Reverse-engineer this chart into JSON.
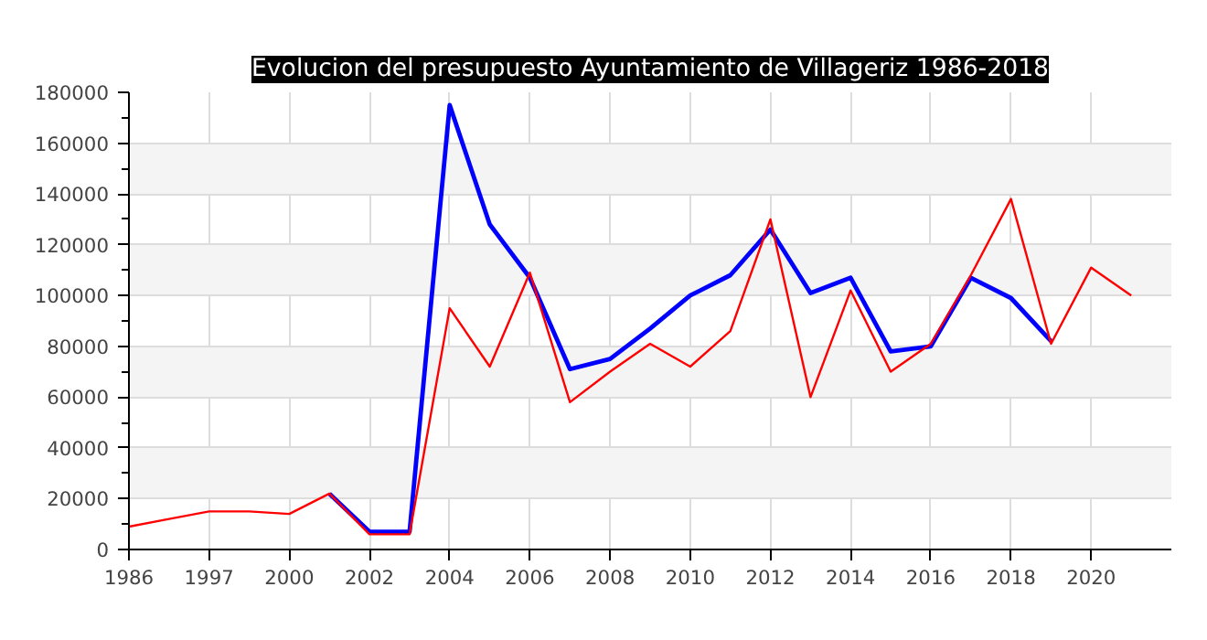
{
  "chart_data": {
    "type": "line",
    "title": "Evolucion del presupuesto Ayuntamiento de Villageriz 1986-2018",
    "categories": [
      "1986",
      null,
      "1997",
      null,
      "2000",
      null,
      "2002",
      null,
      "2004",
      null,
      "2006",
      null,
      "2008",
      null,
      "2010",
      null,
      "2012",
      null,
      "2014",
      null,
      "2016",
      null,
      "2018",
      null,
      "2020",
      null
    ],
    "series": [
      {
        "color": "#0000ff",
        "values": [
          null,
          null,
          null,
          null,
          null,
          22000,
          7000,
          7000,
          175000,
          128000,
          107000,
          71000,
          75000,
          87000,
          100000,
          108000,
          126000,
          101000,
          107000,
          78000,
          80000,
          107000,
          99000,
          82000,
          null,
          null
        ]
      },
      {
        "color": "#ff0000",
        "values": [
          9000,
          12000,
          15000,
          15000,
          14000,
          22000,
          6000,
          6000,
          95000,
          72000,
          109000,
          58000,
          70000,
          81000,
          72000,
          86000,
          130000,
          60000,
          102000,
          70000,
          81000,
          108000,
          138000,
          81000,
          111000,
          100000
        ]
      }
    ],
    "ylim": [
      0,
      180000
    ],
    "yticks": [
      0,
      20000,
      40000,
      60000,
      80000,
      100000,
      120000,
      140000,
      160000,
      180000
    ],
    "grid": true
  }
}
